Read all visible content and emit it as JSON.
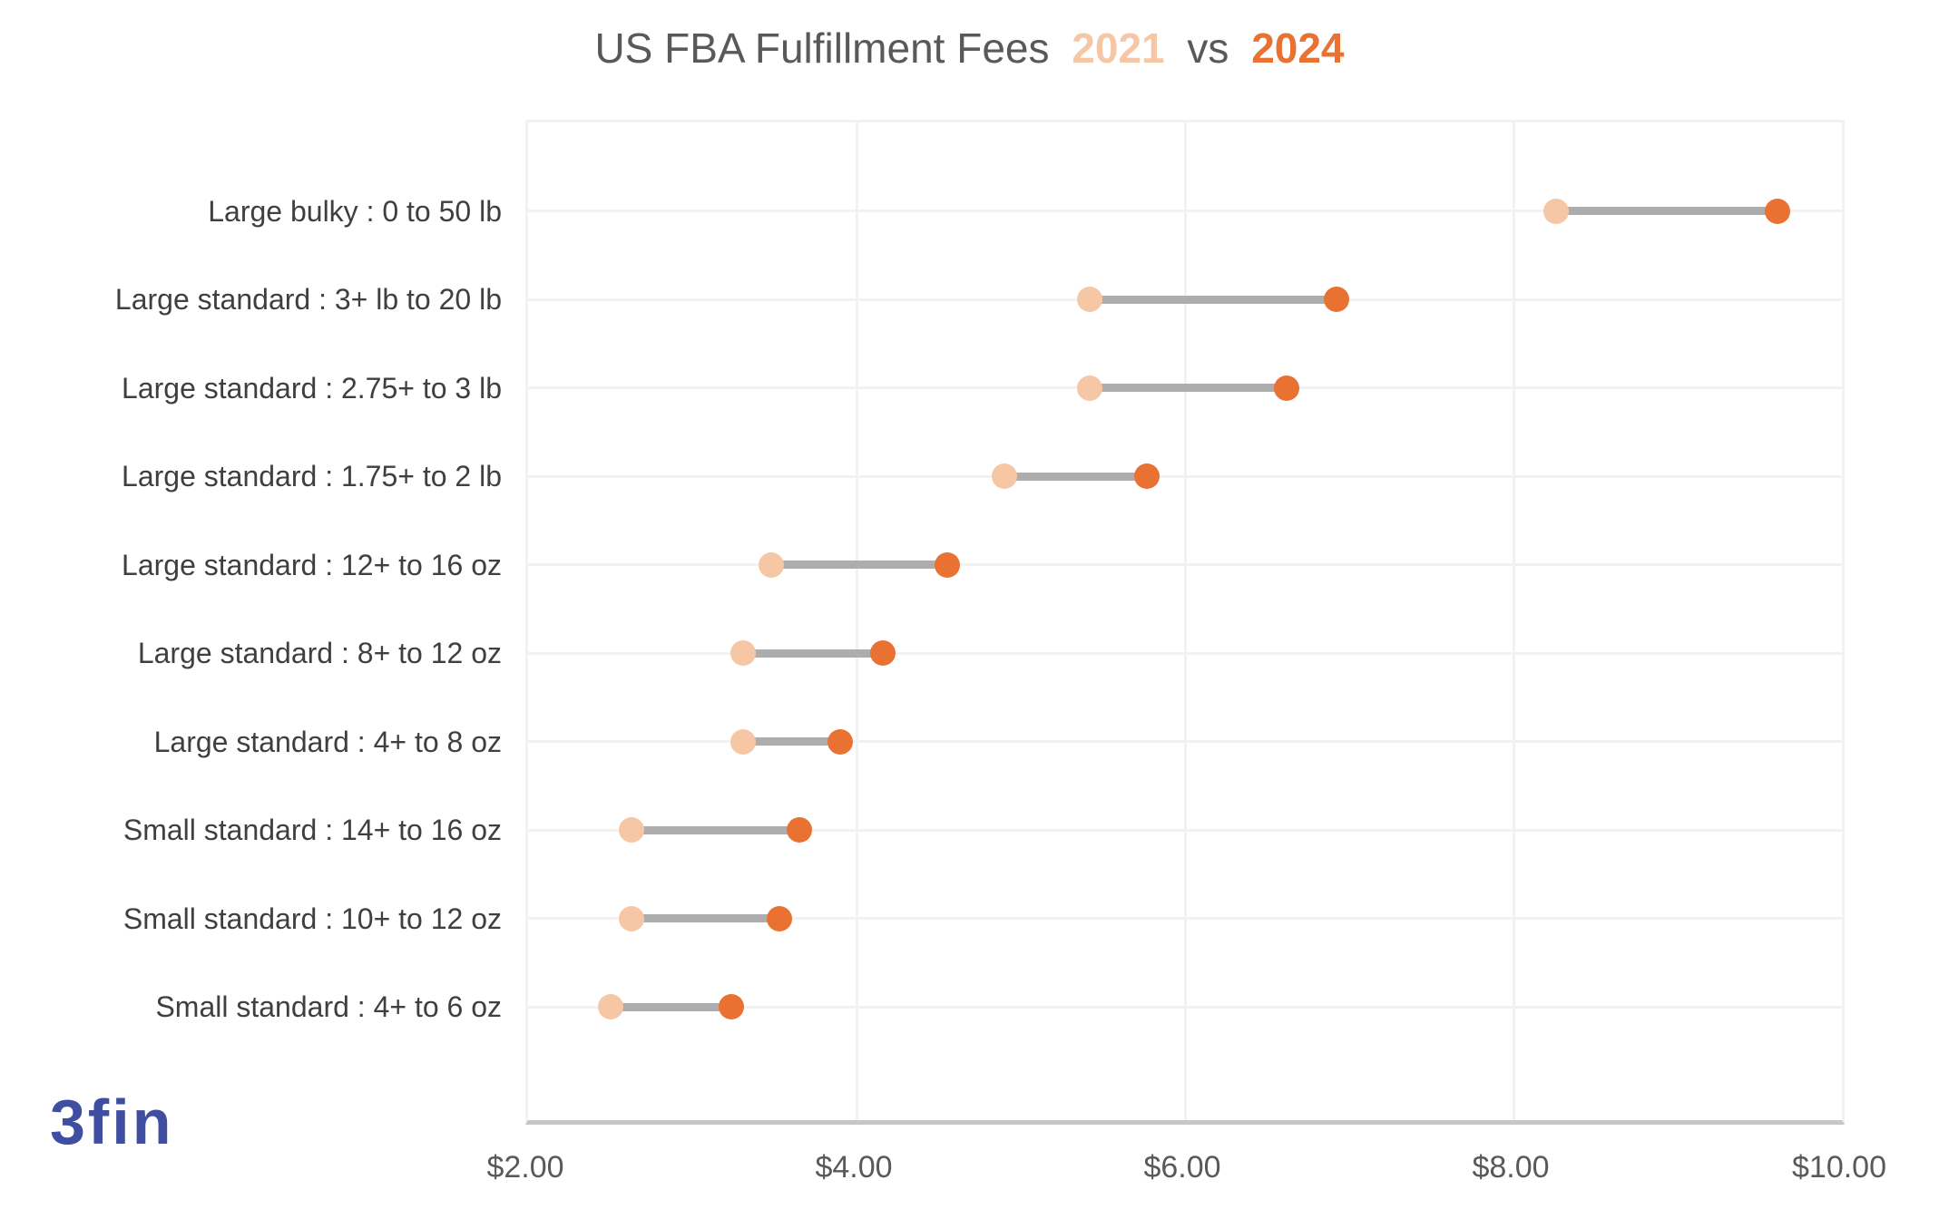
{
  "title": {
    "main": "US FBA Fulfillment Fees",
    "year_2021": "2021",
    "separator": "vs",
    "year_2024": "2024"
  },
  "logo_text": "3fin",
  "colors": {
    "series_2021": "#F6C7A5",
    "series_2024": "#E97132",
    "connector": "#ADADAD",
    "grid": "#F2F2F2",
    "axis_bottom": "#C6C6C6",
    "title_text": "#595959",
    "category_text": "#3F3F3F",
    "tick_text": "#595959",
    "logo": "#3F4EA0"
  },
  "chart_data": {
    "type": "dumbbell",
    "title": "US FBA Fulfillment Fees 2021 vs 2024",
    "xlabel": "",
    "ylabel": "",
    "xlim": [
      2,
      10
    ],
    "grid": true,
    "legend_position": "in-title",
    "categories": [
      "Large bulky : 0 to 50 lb",
      "Large standard : 3+ lb to 20 lb",
      "Large standard : 2.75+ to 3 lb",
      "Large standard : 1.75+ to 2 lb",
      "Large standard : 12+ to 16 oz",
      "Large standard : 8+ to 12 oz",
      "Large standard : 4+ to 8 oz",
      "Small standard : 14+ to 16 oz",
      "Small standard : 10+ to 12 oz",
      "Small standard : 4+ to 6 oz"
    ],
    "series": [
      {
        "name": "2021",
        "color": "#F6C7A5",
        "values": [
          8.26,
          5.42,
          5.42,
          4.9,
          3.48,
          3.31,
          3.31,
          2.63,
          2.63,
          2.5
        ]
      },
      {
        "name": "2024",
        "color": "#E97132",
        "values": [
          9.61,
          6.92,
          6.62,
          5.77,
          4.55,
          4.16,
          3.9,
          3.65,
          3.53,
          3.24
        ]
      }
    ],
    "x_ticks": [
      {
        "value": 2,
        "label": "$2.00"
      },
      {
        "value": 4,
        "label": "$4.00"
      },
      {
        "value": 6,
        "label": "$6.00"
      },
      {
        "value": 8,
        "label": "$8.00"
      },
      {
        "value": 10,
        "label": "$10.00"
      }
    ]
  }
}
